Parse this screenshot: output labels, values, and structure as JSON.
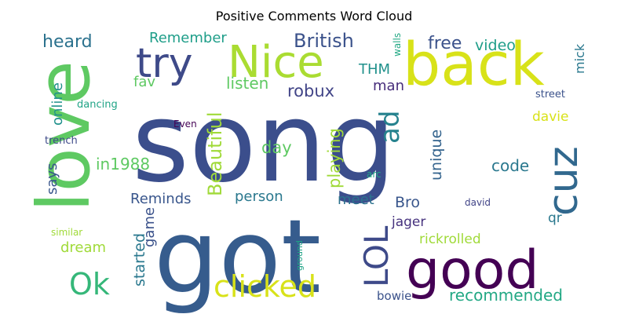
{
  "chart_data": {
    "type": "wordcloud",
    "title": "Positive Comments Word Cloud",
    "words": [
      {
        "text": "song",
        "weight": 1.0,
        "color": "#3b4e8c"
      },
      {
        "text": "got",
        "weight": 0.78,
        "color": "#365c8d"
      },
      {
        "text": "love",
        "weight": 0.7,
        "color": "#5ec962"
      },
      {
        "text": "back",
        "weight": 0.56,
        "color": "#d8e219"
      },
      {
        "text": "good",
        "weight": 0.52,
        "color": "#440154"
      },
      {
        "text": "Nice",
        "weight": 0.5,
        "color": "#aadc32"
      },
      {
        "text": "try",
        "weight": 0.4,
        "color": "#3e4a89"
      },
      {
        "text": "cuz",
        "weight": 0.38,
        "color": "#31688e"
      },
      {
        "text": "LOL",
        "weight": 0.34,
        "color": "#3e4a89"
      },
      {
        "text": "clicked",
        "weight": 0.3,
        "color": "#d8e219"
      },
      {
        "text": "Ok",
        "weight": 0.3,
        "color": "#35b779"
      },
      {
        "text": "ad",
        "weight": 0.27,
        "color": "#26828e"
      },
      {
        "text": "British",
        "weight": 0.2,
        "color": "#3b528b"
      },
      {
        "text": "Beautiful",
        "weight": 0.2,
        "color": "#a0da39"
      },
      {
        "text": "heard",
        "weight": 0.18,
        "color": "#2c728e"
      },
      {
        "text": "free",
        "weight": 0.17,
        "color": "#3b528b"
      },
      {
        "text": "robux",
        "weight": 0.16,
        "color": "#414487"
      },
      {
        "text": "Remember",
        "weight": 0.15,
        "color": "#1f9e89"
      },
      {
        "text": "listen",
        "weight": 0.15,
        "color": "#5ec962"
      },
      {
        "text": "day",
        "weight": 0.16,
        "color": "#5ec962"
      },
      {
        "text": "playing",
        "weight": 0.16,
        "color": "#a0da39"
      },
      {
        "text": "unique",
        "weight": 0.15,
        "color": "#33638d"
      },
      {
        "text": "code",
        "weight": 0.15,
        "color": "#2a788e"
      },
      {
        "text": "recommended",
        "weight": 0.16,
        "color": "#22a884"
      },
      {
        "text": "Bro",
        "weight": 0.15,
        "color": "#39568c"
      },
      {
        "text": "started",
        "weight": 0.15,
        "color": "#2a788e"
      },
      {
        "text": "in1988",
        "weight": 0.15,
        "color": "#5ec962"
      },
      {
        "text": "dream",
        "weight": 0.14,
        "color": "#a0da39"
      },
      {
        "text": "Reminds",
        "weight": 0.14,
        "color": "#39568c"
      },
      {
        "text": "video",
        "weight": 0.14,
        "color": "#1f9e89"
      },
      {
        "text": "person",
        "weight": 0.13,
        "color": "#2a788e"
      },
      {
        "text": "meet",
        "weight": 0.13,
        "color": "#2c728e"
      },
      {
        "text": "online",
        "weight": 0.13,
        "color": "#21918c"
      },
      {
        "text": "says",
        "weight": 0.13,
        "color": "#39568c"
      },
      {
        "text": "fav",
        "weight": 0.13,
        "color": "#5ec962"
      },
      {
        "text": "THM",
        "weight": 0.13,
        "color": "#21918c"
      },
      {
        "text": "man",
        "weight": 0.13,
        "color": "#472d7b"
      },
      {
        "text": "game",
        "weight": 0.12,
        "color": "#3b528b"
      },
      {
        "text": "rickrolled",
        "weight": 0.12,
        "color": "#a0da39"
      },
      {
        "text": "jager",
        "weight": 0.12,
        "color": "#46327e"
      },
      {
        "text": "qr",
        "weight": 0.12,
        "color": "#2a788e"
      },
      {
        "text": "davie",
        "weight": 0.12,
        "color": "#d8e219"
      },
      {
        "text": "mick",
        "weight": 0.1,
        "color": "#2a788e"
      },
      {
        "text": "bowie",
        "weight": 0.09,
        "color": "#3b528b"
      },
      {
        "text": "street",
        "weight": 0.08,
        "color": "#3b528b"
      },
      {
        "text": "dancing",
        "weight": 0.08,
        "color": "#20a486"
      },
      {
        "text": "trench",
        "weight": 0.08,
        "color": "#3e4a89"
      },
      {
        "text": "walls",
        "weight": 0.08,
        "color": "#22a884"
      },
      {
        "text": "Even",
        "weight": 0.08,
        "color": "#440154"
      },
      {
        "text": "david",
        "weight": 0.08,
        "color": "#414487"
      },
      {
        "text": "arc",
        "weight": 0.07,
        "color": "#22a884"
      },
      {
        "text": "similar",
        "weight": 0.07,
        "color": "#a0da39"
      },
      {
        "text": "ground",
        "weight": 0.07,
        "color": "#20a486"
      }
    ]
  }
}
